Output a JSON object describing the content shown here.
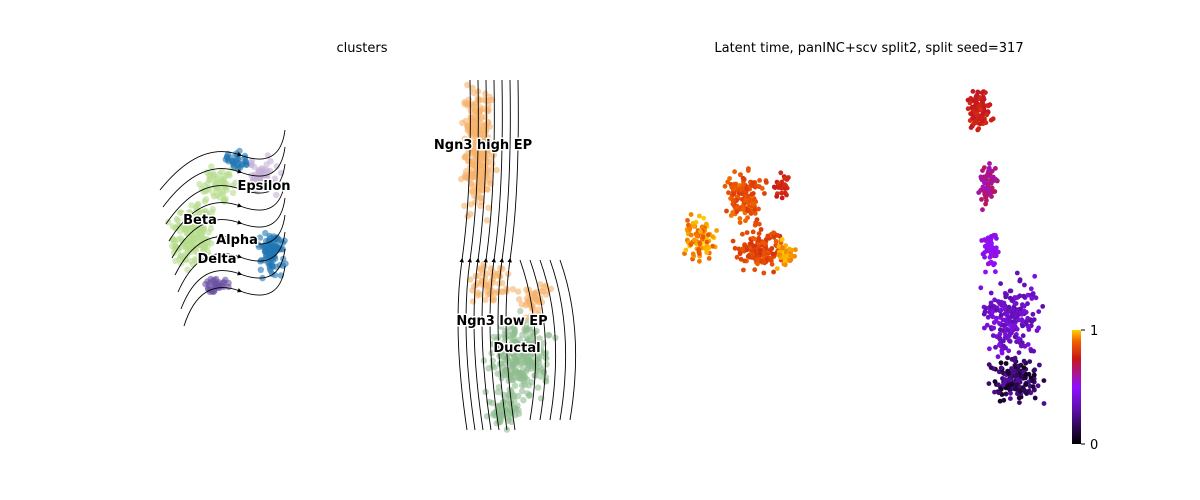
{
  "chart_data": [
    {
      "type": "scatter",
      "title": "clusters",
      "xlabel": "",
      "ylabel": "",
      "grid": false,
      "legend": "on data",
      "overlay": "velocity streamlines",
      "clusters": [
        {
          "name": "Epsilon",
          "color": "#c5b0d5"
        },
        {
          "name": "Beta",
          "color": "#b5dc8c"
        },
        {
          "name": "Alpha",
          "color": "#1f77b4"
        },
        {
          "name": "Delta",
          "color": "#6a51a3"
        },
        {
          "name": "Ngn3 high EP",
          "color": "#f7b26b"
        },
        {
          "name": "Ngn3 low EP",
          "color": "#f7b26b"
        },
        {
          "name": "Ductal",
          "color": "#8fbc8f"
        }
      ]
    },
    {
      "type": "scatter",
      "title": "Latent time, panINC+scv split2, split seed=317",
      "xlabel": "",
      "ylabel": "",
      "grid": false,
      "colorbar": {
        "min": 0,
        "max": 1,
        "ticks": [
          "1",
          "0"
        ],
        "colormap": "gnuplot"
      }
    }
  ]
}
